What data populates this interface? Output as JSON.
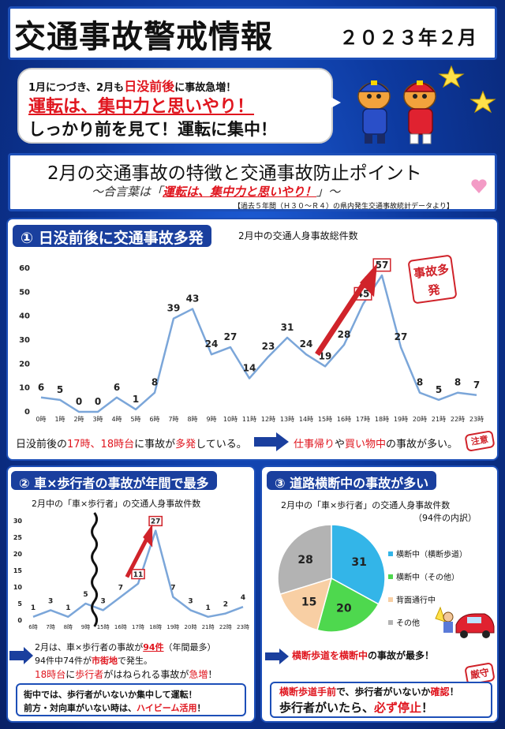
{
  "header": {
    "title": "交通事故警戒情報",
    "date": "２０２３年２月"
  },
  "bubble": {
    "line1_a": "1月につづき、2月も",
    "line1_b": "日没前後",
    "line1_c": "に事故急増！",
    "line2": "運転は、集中力と思いやり！",
    "line3": "しっかり前を見て！運転に集中！"
  },
  "subheader": {
    "title": "2月の交通事故の特徴と交通事故防止ポイント",
    "slogan_a": "～合言葉は「",
    "slogan_b": "運転は、集中力と思いやり！",
    "slogan_c": "」～",
    "note": "【過去５年間（Ｈ３０～Ｒ４）の県内発生交通事故統計データより】"
  },
  "section1": {
    "heading": "① 日没前後に交通事故多発",
    "stamp": "事故多発",
    "foot_a": "日没前後の",
    "foot_b": "17時、18時台",
    "foot_c": "に事故が",
    "foot_d": "多発",
    "foot_e": "している。",
    "foot2_a": "仕事帰り",
    "foot2_b": "や",
    "foot2_c": "買い物中",
    "foot2_d": "の事故が多い。",
    "stamp2": "注意"
  },
  "section2": {
    "heading": "② 車×歩行者の事故が年間で最多",
    "t1_a": "2月は、車×歩行者の事故が",
    "t1_b": "94件",
    "t1_c": "（年間最多）",
    "t2_a": "94件中74件が",
    "t2_b": "市街地",
    "t2_c": "で発生。",
    "t3_a": "18時台",
    "t3_b": "に",
    "t3_c": "歩行者",
    "t3_d": "がはねられる事故が",
    "t3_e": "急増",
    "t3_f": "！",
    "b1": "街中では、歩行者がいないか集中して運転！",
    "b2_a": "前方・対向車がいない時は、",
    "b2_b": "ハイビーム活用",
    "b2_c": "！"
  },
  "section3": {
    "heading": "③ 道路横断中の事故が多い",
    "t1_a": "横断歩道を横断中",
    "t1_b": "の事故が最多！",
    "b1_a": "横断歩道手前",
    "b1_b": "で、歩行者がいないか",
    "b1_c": "確認",
    "b1_d": "！",
    "b2_a": "歩行者がいたら、",
    "b2_b": "必ず停止",
    "b2_c": "！",
    "stamp": "厳守"
  },
  "chart_data": [
    {
      "type": "line",
      "title": "2月中の交通人身事故総件数",
      "categories": [
        "0時",
        "1時",
        "2時",
        "3時",
        "4時",
        "5時",
        "6時",
        "7時",
        "8時",
        "9時",
        "10時",
        "11時",
        "12時",
        "13時",
        "14時",
        "15時",
        "16時",
        "17時",
        "18時",
        "19時",
        "20時",
        "21時",
        "22時",
        "23時"
      ],
      "values": [
        6,
        5,
        0,
        0,
        6,
        1,
        8,
        39,
        43,
        24,
        27,
        14,
        23,
        31,
        24,
        19,
        28,
        45,
        57,
        27,
        8,
        5,
        8,
        7
      ],
      "highlighted": [
        "45",
        "57"
      ],
      "yticks": [
        "0",
        "10",
        "20",
        "30",
        "40",
        "50",
        "60"
      ],
      "ylim": [
        0,
        60
      ],
      "color": "#7ba6d9"
    },
    {
      "type": "line",
      "title": "2月中の「車×歩行者」の交通人身事故件数",
      "categories": [
        "6時",
        "7時",
        "8時",
        "9時",
        "15時",
        "16時",
        "17時",
        "18時",
        "19時",
        "20時",
        "21時",
        "22時",
        "23時"
      ],
      "values": [
        1,
        3,
        1,
        5,
        3,
        7,
        11,
        27,
        7,
        3,
        1,
        2,
        4
      ],
      "highlighted": [
        "11",
        "27"
      ],
      "yticks": [
        "0",
        "5",
        "10",
        "15",
        "20",
        "25",
        "30"
      ],
      "ylim": [
        0,
        30
      ],
      "axis_break_after": "9時",
      "color": "#7ba6d9"
    },
    {
      "type": "pie",
      "title": "2月中の「車×歩行者」の交通人身事故件数",
      "subtitle": "（94件の内訳）",
      "slices": [
        {
          "label": "横断中（横断歩道）",
          "value": 31,
          "text": "31",
          "color": "#33b5e8"
        },
        {
          "label": "横断中（その他）",
          "value": 20,
          "text": "20",
          "color": "#4ed84e"
        },
        {
          "label": "背面通行中",
          "value": 15,
          "text": "15",
          "color": "#f8cfa4"
        },
        {
          "label": "その他",
          "value": 28,
          "text": "28",
          "color": "#b3b3b3"
        }
      ]
    }
  ]
}
